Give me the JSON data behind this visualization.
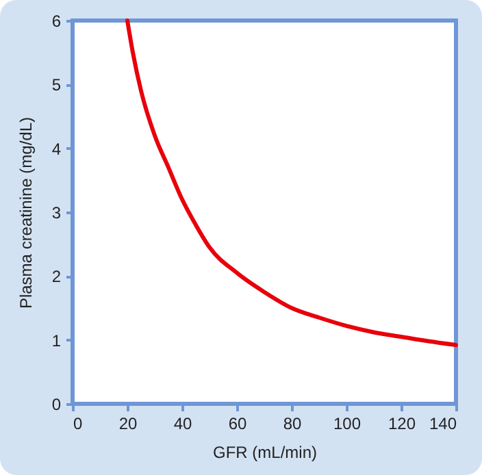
{
  "chart_data": {
    "type": "line",
    "xlabel": "GFR (mL/min)",
    "ylabel": "Plasma creatinine (mg/dL)",
    "x": [
      20,
      22,
      25,
      30,
      35,
      40,
      45,
      50,
      60,
      70,
      80,
      90,
      100,
      110,
      120,
      130,
      140
    ],
    "series": [
      {
        "color": "#e8000b",
        "values": [
          6,
          5.5,
          4.9,
          4.2,
          3.7,
          3.2,
          2.8,
          2.45,
          2.05,
          1.75,
          1.5,
          1.35,
          1.22,
          1.12,
          1.05,
          0.98,
          0.92
        ]
      }
    ],
    "xlim": [
      0,
      140
    ],
    "xticks": [
      0,
      20,
      40,
      60,
      80,
      100,
      120,
      140
    ],
    "ylim": [
      0,
      6
    ],
    "yticks": [
      0,
      1,
      2,
      3,
      4,
      5,
      6
    ],
    "grid": false,
    "marker": "none",
    "line_style": "solid"
  }
}
